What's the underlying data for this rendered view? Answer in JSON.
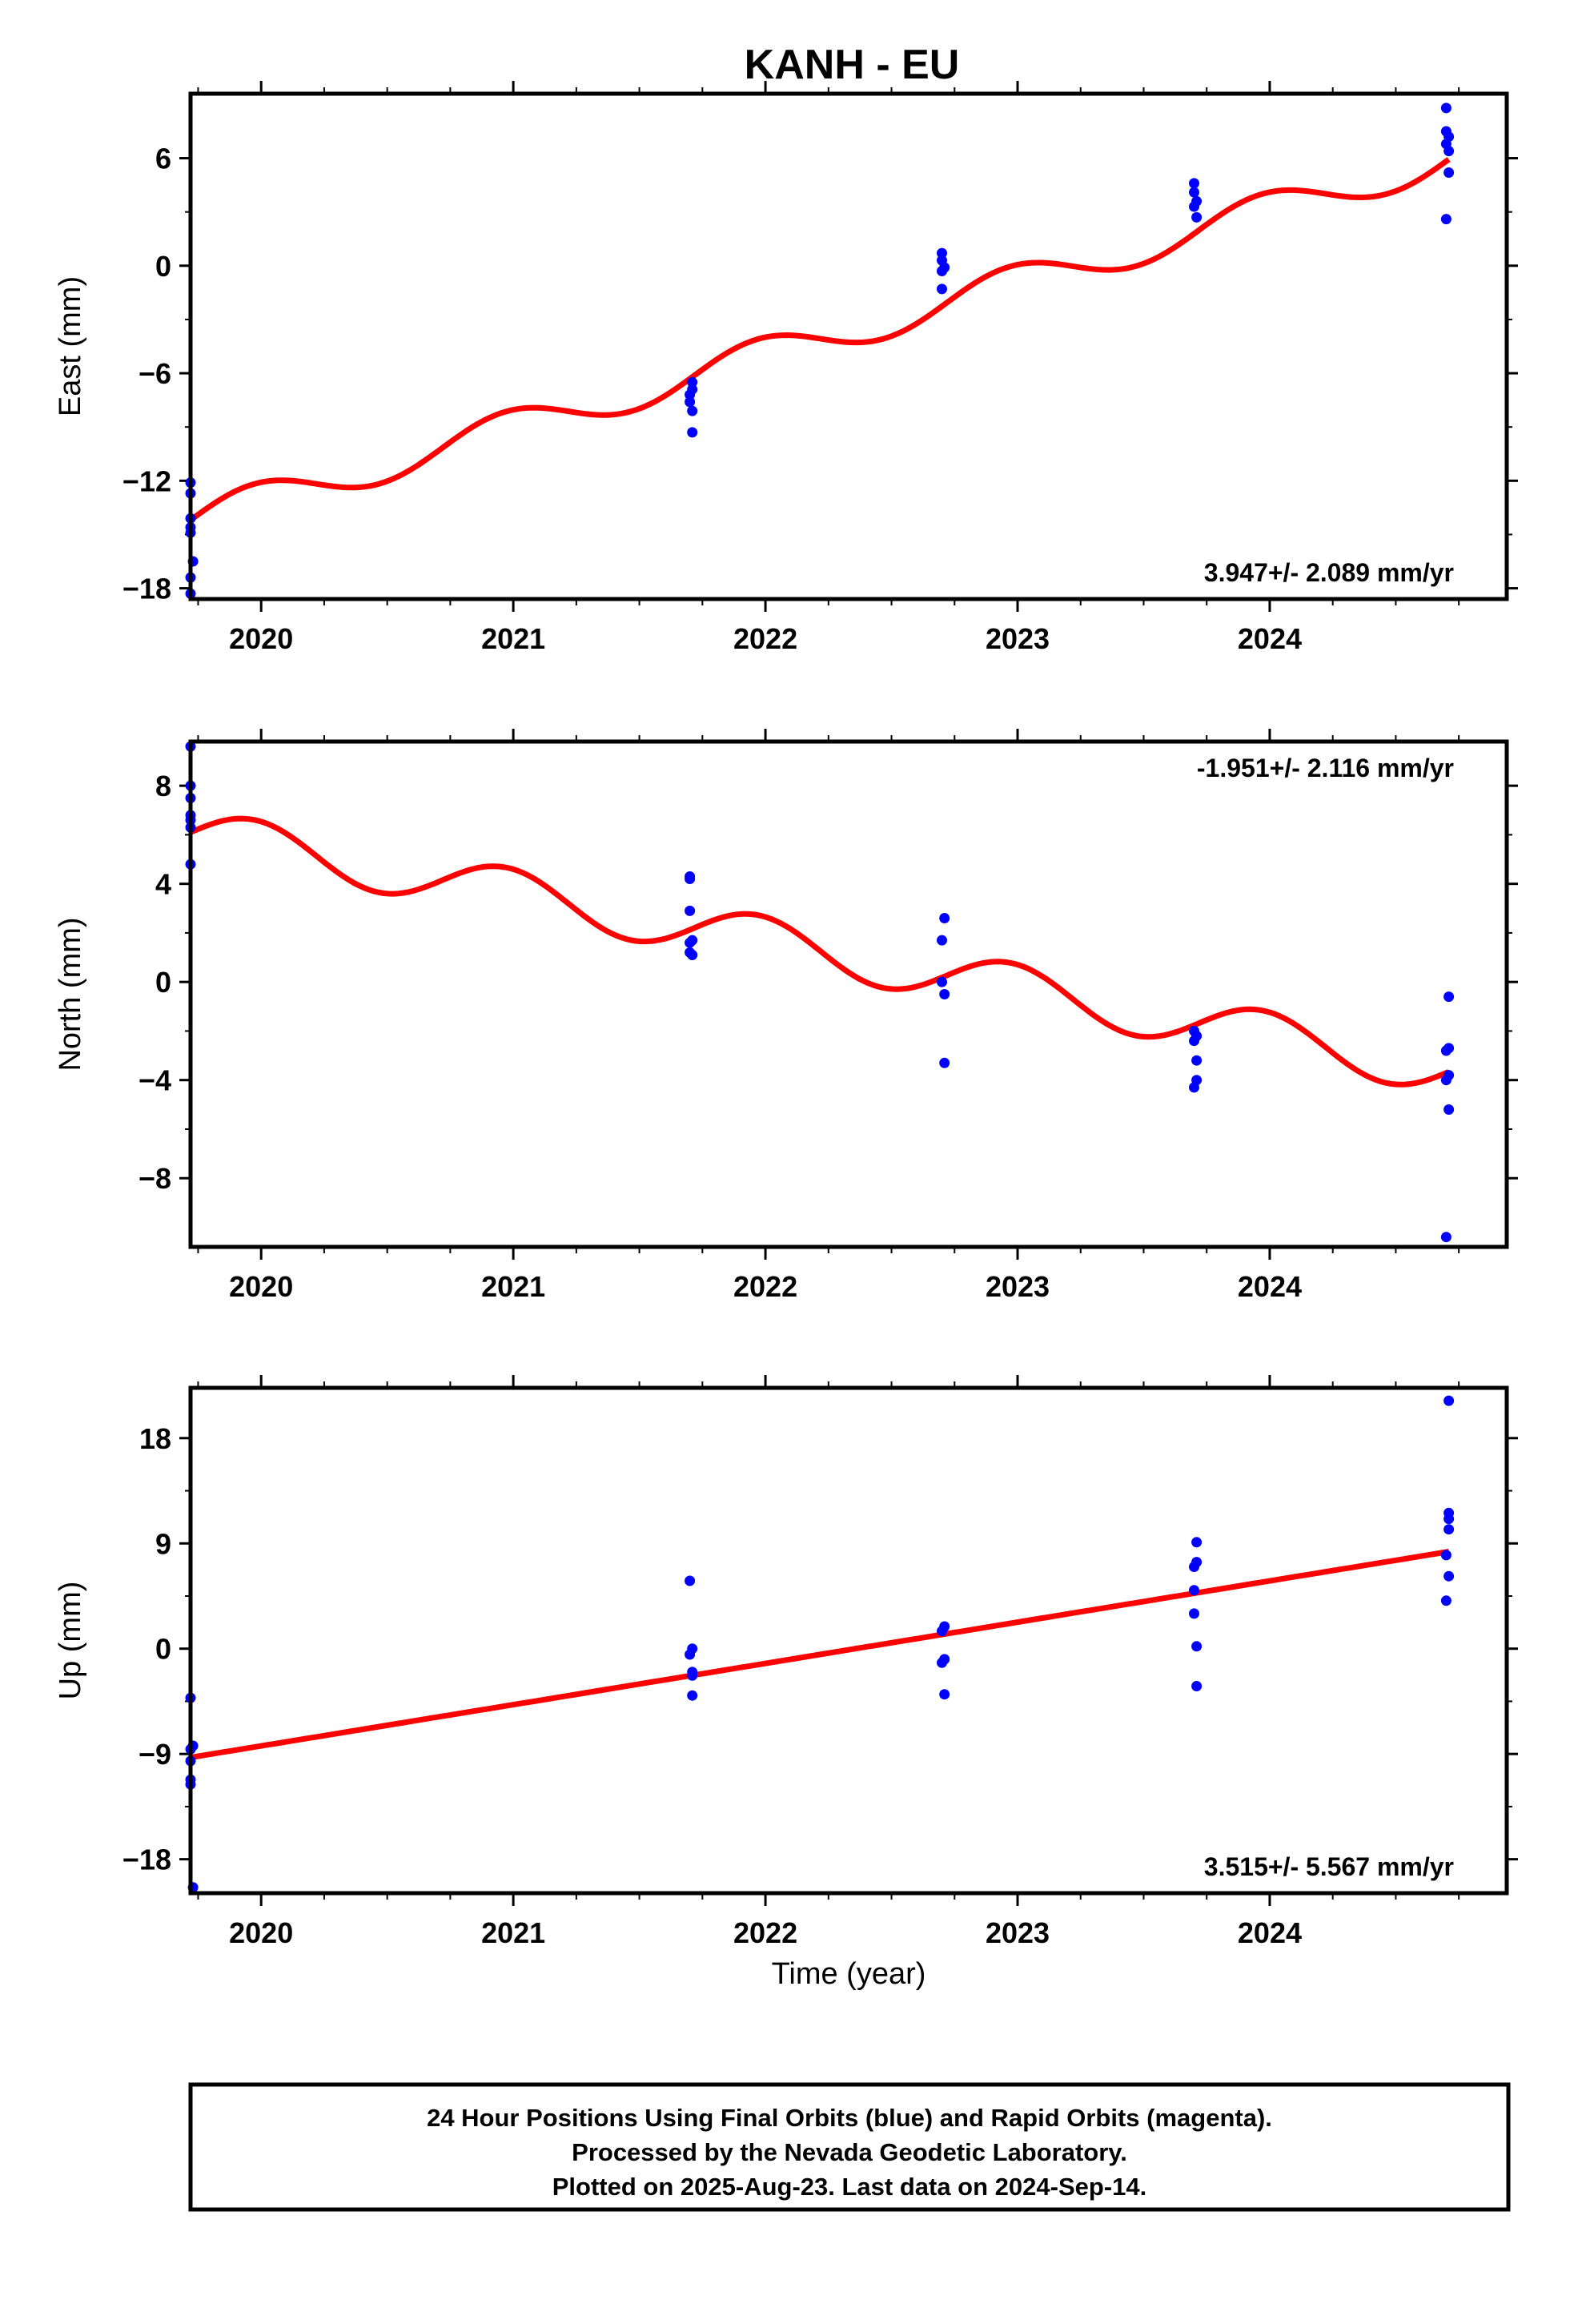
{
  "title": "KANH - EU",
  "colors": {
    "points": "#0000ff",
    "trend": "#ff0000",
    "frame": "#000000"
  },
  "chart_data": [
    {
      "type": "scatter",
      "ylabel": "East (mm)",
      "xlabel": "",
      "xlim": [
        2019.72,
        2024.94
      ],
      "ylim": [
        -18.6,
        9.6
      ],
      "yticks": [
        -18,
        -12,
        -6,
        0,
        6
      ],
      "ytick_labels": [
        "−18",
        "−12",
        "−6",
        "0",
        "6"
      ],
      "xticks": [
        2020,
        2021,
        2022,
        2023,
        2024
      ],
      "xtick_labels": [
        "2020",
        "2021",
        "2022",
        "2023",
        "2024"
      ],
      "rate_text": "3.947+/- 2.089 mm/yr",
      "rate_position": "bottom-right",
      "trend": {
        "x0": 2019.72,
        "x1": 2024.71,
        "y0": -14.2,
        "y1": 6.0,
        "seasonal_amp": 1.0,
        "phase": 0.0
      },
      "points": [
        [
          2019.72,
          -12.1
        ],
        [
          2019.72,
          -12.7
        ],
        [
          2019.72,
          -14.1
        ],
        [
          2019.72,
          -14.6
        ],
        [
          2019.72,
          -14.9
        ],
        [
          2019.73,
          -16.5
        ],
        [
          2019.72,
          -17.4
        ],
        [
          2019.72,
          -18.3
        ],
        [
          2021.71,
          -6.5
        ],
        [
          2021.71,
          -6.9
        ],
        [
          2021.7,
          -7.2
        ],
        [
          2021.7,
          -7.6
        ],
        [
          2021.71,
          -8.1
        ],
        [
          2021.71,
          -9.3
        ],
        [
          2022.7,
          0.7
        ],
        [
          2022.7,
          0.3
        ],
        [
          2022.71,
          -0.1
        ],
        [
          2022.7,
          -0.3
        ],
        [
          2022.7,
          -1.3
        ],
        [
          2023.7,
          4.6
        ],
        [
          2023.7,
          4.1
        ],
        [
          2023.71,
          3.6
        ],
        [
          2023.7,
          3.3
        ],
        [
          2023.71,
          2.7
        ],
        [
          2024.7,
          8.8
        ],
        [
          2024.7,
          7.5
        ],
        [
          2024.71,
          7.2
        ],
        [
          2024.7,
          6.8
        ],
        [
          2024.71,
          6.4
        ],
        [
          2024.71,
          5.2
        ],
        [
          2024.7,
          2.6
        ]
      ]
    },
    {
      "type": "scatter",
      "ylabel": "North (mm)",
      "xlabel": "",
      "xlim": [
        2019.72,
        2024.94
      ],
      "ylim": [
        -10.8,
        9.8
      ],
      "yticks": [
        -8,
        -4,
        0,
        4,
        8
      ],
      "ytick_labels": [
        "−8",
        "−4",
        "0",
        "4",
        "8"
      ],
      "xticks": [
        2020,
        2021,
        2022,
        2023,
        2024
      ],
      "xtick_labels": [
        "2020",
        "2021",
        "2022",
        "2023",
        "2024"
      ],
      "rate_text": "-1.951+/- 2.116 mm/yr",
      "rate_position": "top-right",
      "trend": {
        "x0": 2019.72,
        "x1": 2024.71,
        "y0": 6.1,
        "y1": -3.6,
        "seasonal_amp": 1.0,
        "phase": 0.0
      },
      "points": [
        [
          2019.72,
          9.6
        ],
        [
          2019.72,
          8.0
        ],
        [
          2019.72,
          7.5
        ],
        [
          2019.72,
          6.8
        ],
        [
          2019.72,
          6.6
        ],
        [
          2019.72,
          6.3
        ],
        [
          2019.72,
          4.8
        ],
        [
          2021.7,
          4.3
        ],
        [
          2021.7,
          4.2
        ],
        [
          2021.7,
          2.9
        ],
        [
          2021.71,
          1.7
        ],
        [
          2021.7,
          1.6
        ],
        [
          2021.71,
          1.1
        ],
        [
          2021.7,
          1.2
        ],
        [
          2022.71,
          2.6
        ],
        [
          2022.7,
          1.7
        ],
        [
          2022.7,
          0.0
        ],
        [
          2022.71,
          -0.5
        ],
        [
          2022.71,
          -3.3
        ],
        [
          2023.7,
          -2.0
        ],
        [
          2023.71,
          -2.2
        ],
        [
          2023.7,
          -2.4
        ],
        [
          2023.71,
          -3.2
        ],
        [
          2023.71,
          -4.0
        ],
        [
          2023.7,
          -4.3
        ],
        [
          2024.71,
          -0.6
        ],
        [
          2024.71,
          -2.7
        ],
        [
          2024.7,
          -2.8
        ],
        [
          2024.71,
          -3.8
        ],
        [
          2024.7,
          -4.0
        ],
        [
          2024.71,
          -5.2
        ],
        [
          2024.7,
          -10.4
        ]
      ]
    },
    {
      "type": "scatter",
      "ylabel": "Up (mm)",
      "xlabel": "Time (year)",
      "xlim": [
        2019.72,
        2024.94
      ],
      "ylim": [
        -20.9,
        22.3
      ],
      "yticks": [
        -18,
        -9,
        0,
        9,
        18
      ],
      "ytick_labels": [
        "−18",
        "−9",
        "0",
        "9",
        "18"
      ],
      "xticks": [
        2020,
        2021,
        2022,
        2023,
        2024
      ],
      "xtick_labels": [
        "2020",
        "2021",
        "2022",
        "2023",
        "2024"
      ],
      "rate_text": "3.515+/- 5.567 mm/yr",
      "rate_position": "bottom-right",
      "trend": {
        "x0": 2019.72,
        "x1": 2024.71,
        "y0": -9.3,
        "y1": 8.3,
        "seasonal_amp": 0.0,
        "phase": 0.0
      },
      "points": [
        [
          2019.72,
          -4.2
        ],
        [
          2019.73,
          -8.3
        ],
        [
          2019.72,
          -8.6
        ],
        [
          2019.72,
          -9.6
        ],
        [
          2019.72,
          -11.2
        ],
        [
          2019.72,
          -11.6
        ],
        [
          2019.73,
          -20.4
        ],
        [
          2021.7,
          5.8
        ],
        [
          2021.71,
          0.0
        ],
        [
          2021.7,
          -0.5
        ],
        [
          2021.71,
          -2.0
        ],
        [
          2021.71,
          -2.3
        ],
        [
          2021.71,
          -4.0
        ],
        [
          2022.71,
          1.9
        ],
        [
          2022.7,
          1.5
        ],
        [
          2022.71,
          -0.9
        ],
        [
          2022.7,
          -1.2
        ],
        [
          2022.71,
          -3.9
        ],
        [
          2023.71,
          9.1
        ],
        [
          2023.71,
          7.4
        ],
        [
          2023.7,
          7.0
        ],
        [
          2023.7,
          5.0
        ],
        [
          2023.7,
          3.0
        ],
        [
          2023.71,
          0.2
        ],
        [
          2023.71,
          -3.2
        ],
        [
          2024.71,
          21.2
        ],
        [
          2024.71,
          11.6
        ],
        [
          2024.71,
          11.1
        ],
        [
          2024.71,
          10.2
        ],
        [
          2024.7,
          8.0
        ],
        [
          2024.71,
          6.2
        ],
        [
          2024.7,
          4.1
        ]
      ]
    }
  ],
  "footer": {
    "line1": "24 Hour Positions Using Final Orbits (blue) and Rapid Orbits (magenta).",
    "line2": "Processed by the Nevada Geodetic Laboratory.",
    "line3": "Plotted on 2025-Aug-23. Last data on 2024-Sep-14."
  }
}
